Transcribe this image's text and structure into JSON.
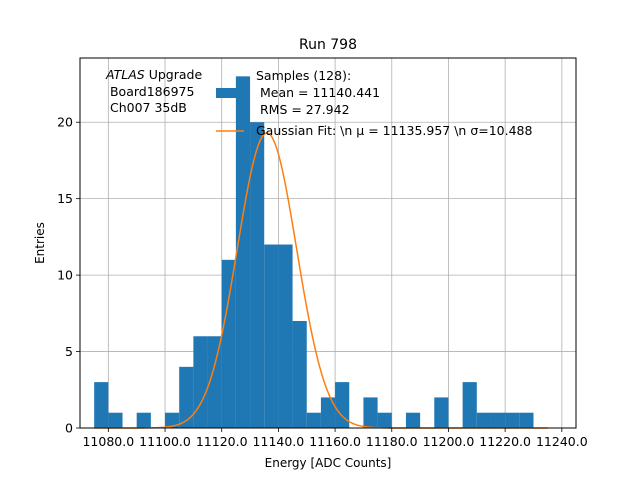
{
  "chart_data": {
    "type": "bar",
    "title": "Run 798",
    "xlabel": "Energy [ADC Counts]",
    "ylabel": "Entries",
    "xlim": [
      11070.0,
      11245.0
    ],
    "ylim": [
      0,
      24.2
    ],
    "grid": true,
    "bin_width": 5.0,
    "bins_start": [
      11075,
      11080,
      11085,
      11090,
      11095,
      11100,
      11105,
      11110,
      11115,
      11120,
      11125,
      11130,
      11135,
      11140,
      11145,
      11150,
      11155,
      11160,
      11165,
      11170,
      11175,
      11180,
      11185,
      11190,
      11195,
      11200,
      11205,
      11210,
      11215,
      11220,
      11225,
      11230
    ],
    "counts": [
      3,
      1,
      0,
      1,
      0,
      1,
      4,
      6,
      6,
      11,
      23,
      20,
      12,
      12,
      7,
      1,
      2,
      3,
      0,
      2,
      1,
      0,
      1,
      0,
      2,
      0,
      3,
      1,
      1,
      1,
      1,
      0
    ],
    "x_ticks": [
      11080,
      11100,
      11120,
      11140,
      11160,
      11180,
      11200,
      11220,
      11240
    ],
    "x_tick_labels": [
      "11080.0",
      "11100.0",
      "11120.0",
      "11140.0",
      "11160.0",
      "11180.0",
      "11200.0",
      "11220.0",
      "11240.0"
    ],
    "y_ticks": [
      0,
      5,
      10,
      15,
      20
    ],
    "y_tick_labels": [
      "0",
      "5",
      "10",
      "15",
      "20"
    ],
    "gauss_fit": {
      "mu": 11135.957,
      "sigma": 10.488,
      "amplitude": 19.3,
      "x_range": [
        11075.0,
        11235.0
      ]
    },
    "colors": {
      "histogram": "#1f77b4",
      "fit": "#ff7f0e",
      "grid": "#b0b0b0"
    },
    "annotation": {
      "line1_italic": "ATLAS",
      "line1_rest": " Upgrade",
      "line2": " Board186975",
      "line3": " Ch007 35dB"
    },
    "legend": {
      "placement": "top-right",
      "entries": [
        {
          "lines": [
            "Samples (128):",
            " Mean = 11140.441",
            " RMS = 27.942"
          ],
          "color": "#1f77b4",
          "kind": "patch"
        },
        {
          "lines": [
            "Gaussian Fit: \\n μ = 11135.957 \\n σ=10.488"
          ],
          "color": "#ff7f0e",
          "kind": "line"
        }
      ]
    }
  }
}
